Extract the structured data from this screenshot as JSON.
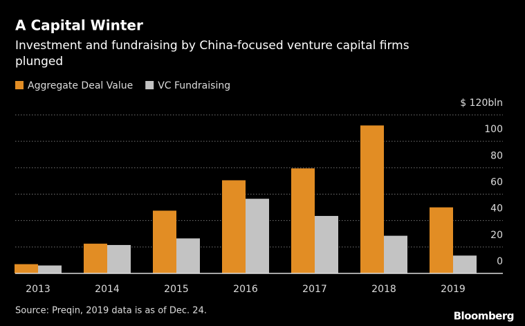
{
  "chart_data": {
    "type": "bar",
    "title": "A Capital Winter",
    "subtitle": "Investment and fundraising by China-focused venture capital firms plunged",
    "categories": [
      "2013",
      "2014",
      "2015",
      "2016",
      "2017",
      "2018",
      "2019"
    ],
    "series": [
      {
        "name": "Aggregate Deal Value",
        "color": "#e28d24",
        "values": [
          7,
          22.5,
          47.5,
          70.5,
          79.5,
          112,
          50
        ]
      },
      {
        "name": "VC Fundraising",
        "color": "#c3c3c3",
        "values": [
          6,
          21.5,
          26.5,
          56.5,
          43.5,
          28.5,
          13.5
        ]
      }
    ],
    "ylim": [
      0,
      120
    ],
    "yticks": [
      0,
      20,
      40,
      60,
      80,
      100,
      {
        "value": 120,
        "label": "$ 120bln"
      }
    ],
    "grid": true,
    "source": "Source: Preqin, 2019 data is as of Dec. 24.",
    "brand": "Bloomberg"
  }
}
